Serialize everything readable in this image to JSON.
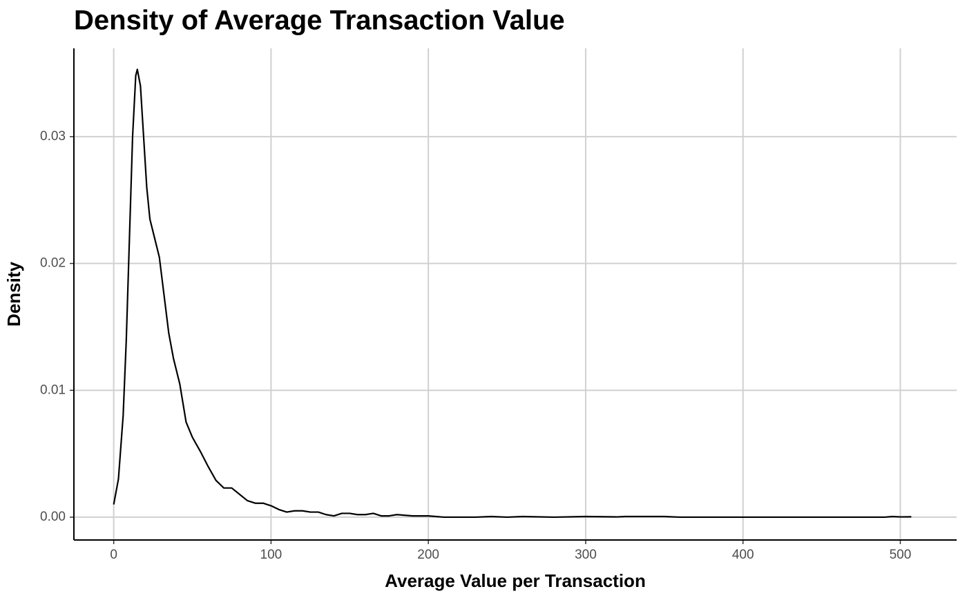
{
  "chart_data": {
    "type": "line",
    "title": "Density of Average Transaction Value",
    "x_label": "Average Value per Transaction",
    "y_label": "Density",
    "series": [
      {
        "name": "density",
        "color": "#000000",
        "x": [
          0,
          3,
          6,
          8,
          10,
          12,
          14,
          15,
          17,
          19,
          21,
          23,
          26,
          29,
          32,
          35,
          38,
          42,
          46,
          50,
          55,
          60,
          65,
          70,
          75,
          80,
          85,
          90,
          95,
          100,
          105,
          110,
          115,
          120,
          125,
          130,
          135,
          140,
          145,
          150,
          155,
          160,
          165,
          170,
          175,
          180,
          190,
          200,
          210,
          230,
          240,
          250,
          260,
          280,
          300,
          320,
          325,
          350,
          360,
          400,
          490,
          495,
          500,
          507
        ],
        "values": [
          0.001,
          0.003,
          0.008,
          0.014,
          0.022,
          0.03,
          0.0348,
          0.0353,
          0.034,
          0.03,
          0.026,
          0.0235,
          0.022,
          0.0205,
          0.0175,
          0.0145,
          0.0125,
          0.0105,
          0.0075,
          0.0063,
          0.0052,
          0.004,
          0.0029,
          0.0023,
          0.0023,
          0.0018,
          0.0013,
          0.0011,
          0.0011,
          0.0009,
          0.0006,
          0.0004,
          0.0005,
          0.0005,
          0.0004,
          0.0004,
          0.0002,
          0.0001,
          0.0003,
          0.0003,
          0.0002,
          0.0002,
          0.0003,
          0.0001,
          0.0001,
          0.0002,
          0.0001,
          0.0001,
          0,
          0,
          5e-05,
          0,
          5e-05,
          0,
          5e-05,
          2e-05,
          5e-05,
          5e-05,
          0,
          0,
          0,
          5e-05,
          2e-05,
          3e-05
        ]
      }
    ],
    "xlim": [
      -25.3,
      535.8
    ],
    "ylim": [
      -0.0018,
      0.03696
    ],
    "xticks": [
      0,
      100,
      200,
      300,
      400,
      500
    ],
    "yticks": [
      {
        "value": 0,
        "label": "0.00"
      },
      {
        "value": 0.01,
        "label": "0.01"
      },
      {
        "value": 0.02,
        "label": "0.02"
      },
      {
        "value": 0.03,
        "label": "0.03"
      }
    ],
    "grid": true
  }
}
